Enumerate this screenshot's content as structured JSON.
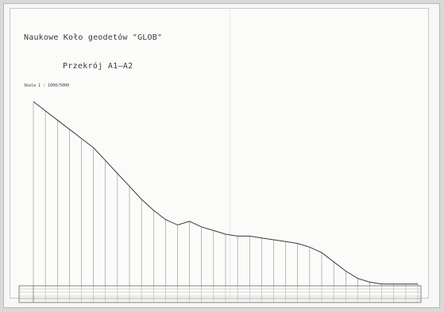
{
  "header": {
    "organization": "Naukowe Koło geodetów \"GLOB\"",
    "section_title": "Przekrój A1–A2",
    "scale": "Skala 1 : 1000/5000"
  },
  "chart_data": {
    "type": "line",
    "title": "Przekrój A1–A2",
    "description_labels": [],
    "stations": [
      0,
      1,
      2,
      3,
      4,
      5,
      6,
      7,
      8,
      9,
      10,
      11,
      12,
      13,
      14,
      15,
      16,
      17,
      18,
      19,
      20,
      21,
      22,
      23,
      24,
      25,
      26,
      27,
      28,
      29,
      30,
      31,
      32
    ],
    "relative_heights": [
      1.0,
      0.95,
      0.9,
      0.85,
      0.8,
      0.75,
      0.68,
      0.61,
      0.54,
      0.47,
      0.41,
      0.36,
      0.33,
      0.35,
      0.32,
      0.3,
      0.28,
      0.27,
      0.27,
      0.26,
      0.25,
      0.24,
      0.23,
      0.21,
      0.18,
      0.13,
      0.08,
      0.04,
      0.02,
      0.01,
      0.01,
      0.01,
      0.01
    ],
    "grid": false
  },
  "colors": {
    "paper": "#fbfbfa",
    "line": "#3a3a3a",
    "guide": "#7a7a7a"
  }
}
